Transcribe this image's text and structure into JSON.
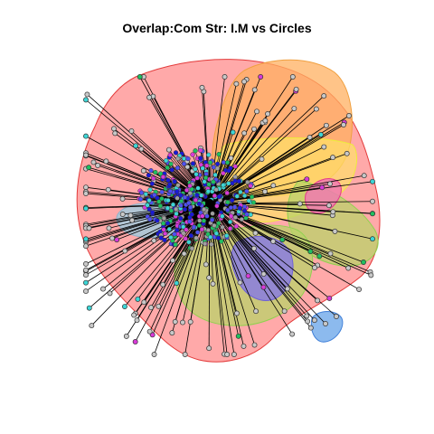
{
  "title": "Overlap:Com Str: I.M vs Circles",
  "graph": {
    "hub_color": "#000000",
    "edge_color": "#000000",
    "node_border_color": "#333333",
    "node_fill_outer": "#c8c8c8",
    "community_fills": [
      {
        "name": "red",
        "fill": "#ff9a9a",
        "stroke": "#e33b3b"
      },
      {
        "name": "orange",
        "fill": "#ffb060",
        "stroke": "#f0a040"
      },
      {
        "name": "yellow",
        "fill": "#ffe566",
        "stroke": "#eded3a"
      },
      {
        "name": "olive",
        "fill": "#b9d36a",
        "stroke": "#8fd14f"
      },
      {
        "name": "purple",
        "fill": "#8a7de0",
        "stroke": "#6f62d4"
      },
      {
        "name": "lightblue",
        "fill": "#a8c8d8",
        "stroke": "#90b0c8"
      },
      {
        "name": "pink",
        "fill": "#f07ab0",
        "stroke": "#e33b8b"
      },
      {
        "name": "blue",
        "fill": "#7fb2ec",
        "stroke": "#3f7fd8"
      }
    ],
    "inner_node_colors": [
      "#1a1ad6",
      "#3cd6d6",
      "#d83ad8",
      "#20c060",
      "#a0a0a0",
      "#5050f0"
    ]
  }
}
